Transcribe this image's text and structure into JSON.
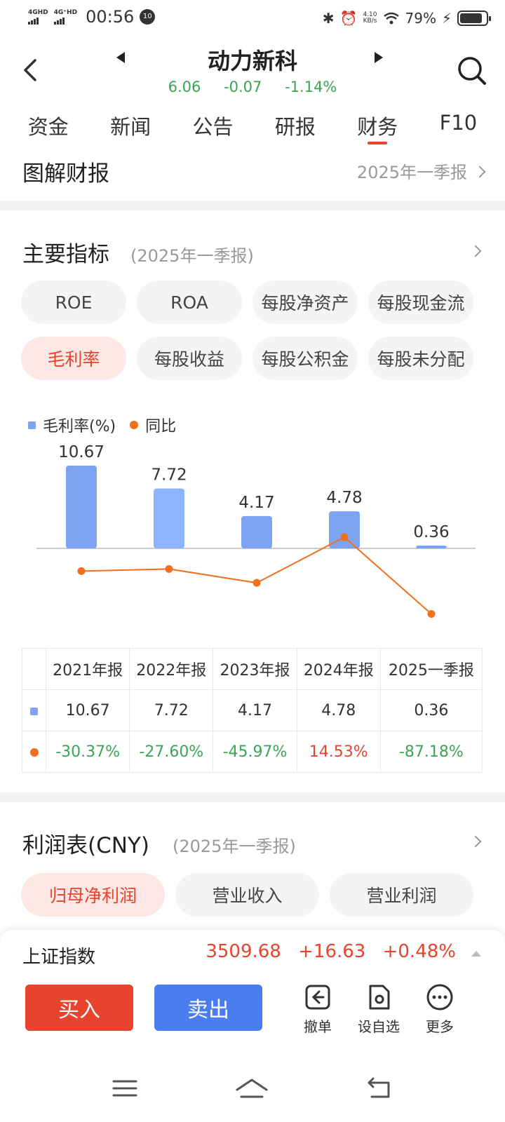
{
  "status_bar": {
    "net1": "4GHD",
    "net2": "4G⁺HD",
    "time": "00:56",
    "badge": "10",
    "speed_top": "4.10",
    "speed_bottom": "KB/s",
    "battery": "79%"
  },
  "header": {
    "stock_name": "动力新科",
    "price": "6.06",
    "change": "-0.07",
    "change_pct": "-1.14%"
  },
  "tabs": [
    "资金",
    "新闻",
    "公告",
    "研报",
    "财务",
    "F10"
  ],
  "active_tab": "财务",
  "graph_report": {
    "title": "图解财报",
    "period": "2025年一季报"
  },
  "indicators": {
    "title": "主要指标",
    "period": "(2025年一季报)",
    "chips": [
      "ROE",
      "ROA",
      "每股净资产",
      "每股现金流",
      "毛利率",
      "每股收益",
      "每股公积金",
      "每股未分配"
    ],
    "active_chip": "毛利率"
  },
  "legend": {
    "bar_label": "毛利率(%)",
    "line_label": "同比"
  },
  "chart_data": {
    "type": "bar",
    "categories": [
      "2021年报",
      "2022年报",
      "2023年报",
      "2024年报",
      "2025一季报"
    ],
    "series": [
      {
        "name": "毛利率(%)",
        "type": "bar",
        "values": [
          10.67,
          7.72,
          4.17,
          4.78,
          0.36
        ],
        "labels": [
          "10.67",
          "7.72",
          "4.17",
          "4.78",
          "0.36"
        ]
      },
      {
        "name": "同比",
        "type": "line",
        "values": [
          -30.37,
          -27.6,
          -45.97,
          14.53,
          -87.18
        ],
        "labels": [
          "-30.37%",
          "-27.60%",
          "-45.97%",
          "14.53%",
          "-87.18%"
        ]
      }
    ],
    "colors": {
      "bar": "#7ea3f0",
      "bar_alt": "#8fb4ff",
      "line": "#f07020",
      "axis": "#bbbbbb"
    }
  },
  "profit": {
    "title": "利润表(CNY)",
    "period": "(2025年一季报)",
    "chips": [
      "归母净利润",
      "营业收入",
      "营业利润"
    ],
    "active_chip": "归母净利润"
  },
  "index": {
    "name": "上证指数",
    "value": "3509.68",
    "change": "+16.63",
    "change_pct": "+0.48%"
  },
  "actions": {
    "buy": "买入",
    "sell": "卖出",
    "cancel": "撤单",
    "watchlist": "设自选",
    "more": "更多"
  },
  "colors": {
    "accent_red": "#e8432e",
    "accent_blue": "#4a7ef0",
    "down_green": "#3aa655"
  }
}
